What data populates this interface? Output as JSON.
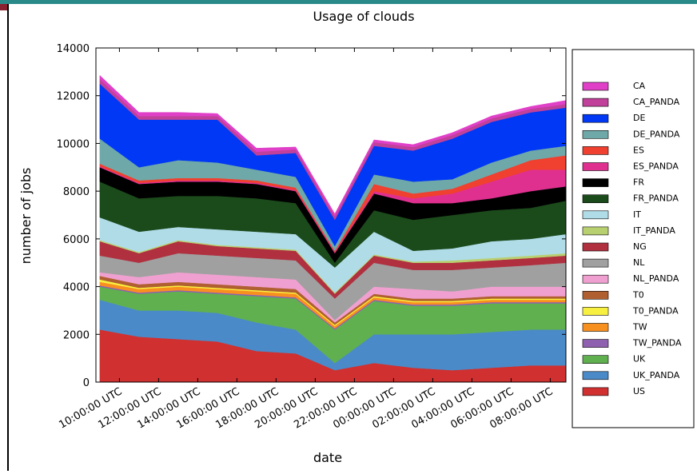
{
  "chart_data": {
    "type": "stacked_area",
    "title": "Usage of clouds",
    "xlabel": "date",
    "ylabel": "number of jobs",
    "x": [
      9,
      11,
      13,
      15,
      17,
      19,
      21,
      23,
      25,
      27,
      29,
      31,
      32.8
    ],
    "xlim": [
      8.8,
      32.8
    ],
    "xticks": [
      {
        "value": 10,
        "label": "10:00:00 UTC"
      },
      {
        "value": 12,
        "label": "12:00:00 UTC"
      },
      {
        "value": 14,
        "label": "14:00:00 UTC"
      },
      {
        "value": 16,
        "label": "16:00:00 UTC"
      },
      {
        "value": 18,
        "label": "18:00:00 UTC"
      },
      {
        "value": 20,
        "label": "20:00:00 UTC"
      },
      {
        "value": 22,
        "label": "22:00:00 UTC"
      },
      {
        "value": 24,
        "label": "00:00:00 UTC"
      },
      {
        "value": 26,
        "label": "02:00:00 UTC"
      },
      {
        "value": 28,
        "label": "04:00:00 UTC"
      },
      {
        "value": 30,
        "label": "06:00:00 UTC"
      },
      {
        "value": 32,
        "label": "08:00:00 UTC"
      }
    ],
    "ylim": [
      0,
      14000
    ],
    "yticks": [
      0,
      2000,
      4000,
      6000,
      8000,
      10000,
      12000,
      14000
    ],
    "grid": false,
    "legend": "outside right",
    "series": [
      {
        "name": "CA",
        "color": "#e040c8",
        "values": [
          150,
          150,
          150,
          100,
          150,
          100,
          100,
          100,
          100,
          100,
          100,
          100,
          150
        ]
      },
      {
        "name": "CA_PANDA",
        "color": "#c0409a",
        "values": [
          200,
          150,
          150,
          150,
          150,
          150,
          150,
          150,
          150,
          150,
          150,
          150,
          150
        ]
      },
      {
        "name": "DE",
        "color": "#0038f5",
        "values": [
          2300,
          2000,
          1700,
          1800,
          600,
          1000,
          1100,
          1200,
          1300,
          1700,
          1700,
          1600,
          1600
        ]
      },
      {
        "name": "DE_PANDA",
        "color": "#6fa8a8",
        "values": [
          1050,
          550,
          750,
          650,
          450,
          450,
          200,
          400,
          500,
          400,
          500,
          400,
          400
        ]
      },
      {
        "name": "ES",
        "color": "#f0402f",
        "values": [
          100,
          100,
          100,
          100,
          100,
          100,
          50,
          300,
          200,
          200,
          300,
          400,
          600
        ]
      },
      {
        "name": "ES_PANDA",
        "color": "#e0308f",
        "values": [
          50,
          50,
          50,
          50,
          50,
          50,
          50,
          100,
          200,
          400,
          700,
          900,
          700
        ]
      },
      {
        "name": "FR",
        "color": "#000000",
        "values": [
          600,
          600,
          600,
          600,
          600,
          500,
          400,
          700,
          700,
          500,
          500,
          700,
          600
        ]
      },
      {
        "name": "FR_PANDA",
        "color": "#1b4a1b",
        "values": [
          1500,
          1400,
          1300,
          1400,
          1400,
          1300,
          200,
          900,
          1300,
          1400,
          1300,
          1300,
          1400
        ]
      },
      {
        "name": "IT",
        "color": "#b0dce8",
        "values": [
          950,
          850,
          550,
          650,
          650,
          650,
          1050,
          950,
          450,
          500,
          700,
          700,
          800
        ]
      },
      {
        "name": "IT_PANDA",
        "color": "#b8d070",
        "values": [
          50,
          50,
          50,
          50,
          50,
          50,
          50,
          50,
          50,
          100,
          100,
          100,
          100
        ]
      },
      {
        "name": "NG",
        "color": "#b03040",
        "values": [
          600,
          400,
          500,
          400,
          400,
          400,
          200,
          300,
          300,
          300,
          300,
          300,
          300
        ]
      },
      {
        "name": "NL",
        "color": "#a0a0a0",
        "values": [
          700,
          600,
          800,
          800,
          800,
          800,
          900,
          1000,
          800,
          900,
          800,
          900,
          1000
        ]
      },
      {
        "name": "NL_PANDA",
        "color": "#f0a0d0",
        "values": [
          150,
          300,
          400,
          400,
          400,
          400,
          100,
          300,
          400,
          300,
          400,
          400,
          400
        ]
      },
      {
        "name": "T0",
        "color": "#b06030",
        "values": [
          150,
          150,
          150,
          150,
          150,
          150,
          100,
          100,
          100,
          100,
          100,
          100,
          100
        ]
      },
      {
        "name": "T0_PANDA",
        "color": "#f8f040",
        "values": [
          100,
          50,
          50,
          50,
          50,
          50,
          50,
          50,
          50,
          50,
          50,
          50,
          50
        ]
      },
      {
        "name": "TW",
        "color": "#f89020",
        "values": [
          150,
          150,
          150,
          150,
          150,
          150,
          100,
          100,
          100,
          100,
          100,
          100,
          100
        ]
      },
      {
        "name": "TW_PANDA",
        "color": "#9060b0",
        "values": [
          50,
          50,
          50,
          50,
          50,
          50,
          50,
          50,
          50,
          50,
          50,
          50,
          50
        ]
      },
      {
        "name": "UK",
        "color": "#60b050",
        "values": [
          550,
          700,
          800,
          800,
          1100,
          1300,
          1400,
          1400,
          1200,
          1200,
          1200,
          1100,
          1100
        ]
      },
      {
        "name": "UK_PANDA",
        "color": "#4a8ac8",
        "values": [
          1250,
          1100,
          1200,
          1200,
          1200,
          1000,
          300,
          1200,
          1400,
          1500,
          1500,
          1500,
          1500
        ]
      },
      {
        "name": "US",
        "color": "#d03030",
        "values": [
          2200,
          1900,
          1800,
          1700,
          1300,
          1200,
          500,
          800,
          600,
          500,
          600,
          700,
          700
        ]
      }
    ]
  }
}
